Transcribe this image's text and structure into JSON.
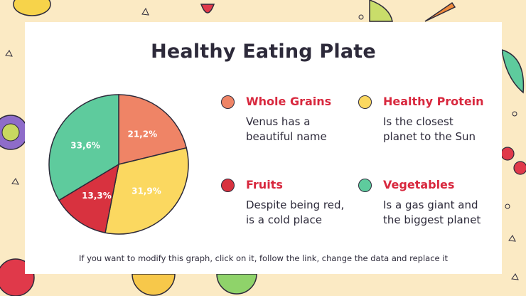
{
  "slide": {
    "title": "Healthy Eating Plate",
    "footnote": "If you want to modify this graph, click on it, follow the link, change the data and replace it"
  },
  "colors": {
    "background": "#fbeac4",
    "card": "#ffffff",
    "title": "#2d2a3a",
    "accent_red": "#d8283e"
  },
  "legend": [
    {
      "title": "Whole Grains",
      "desc_lines": [
        "Venus has a",
        "beautiful name"
      ],
      "color": "#ef8466"
    },
    {
      "title": "Healthy Protein",
      "desc_lines": [
        "Is the closest",
        "planet to the Sun"
      ],
      "color": "#fbd860"
    },
    {
      "title": "Fruits",
      "desc_lines": [
        "Despite being red,",
        "is a cold place"
      ],
      "color": "#d8323f"
    },
    {
      "title": "Vegetables",
      "desc_lines": [
        "Is a gas giant and",
        "the biggest planet"
      ],
      "color": "#5ecb9d"
    }
  ],
  "chart_data": {
    "type": "pie",
    "slices": [
      {
        "label": "Whole Grains",
        "value": 21.2,
        "display": "21,2%",
        "color": "#ef8466"
      },
      {
        "label": "Healthy Protein",
        "value": 31.9,
        "display": "31,9%",
        "color": "#fbd860"
      },
      {
        "label": "Fruits",
        "value": 13.3,
        "display": "13,3%",
        "color": "#d8323f"
      },
      {
        "label": "Vegetables",
        "value": 33.6,
        "display": "33,6%",
        "color": "#5ecb9d"
      }
    ],
    "start_angle_deg": 0,
    "direction": "clockwise",
    "legend": "right"
  }
}
